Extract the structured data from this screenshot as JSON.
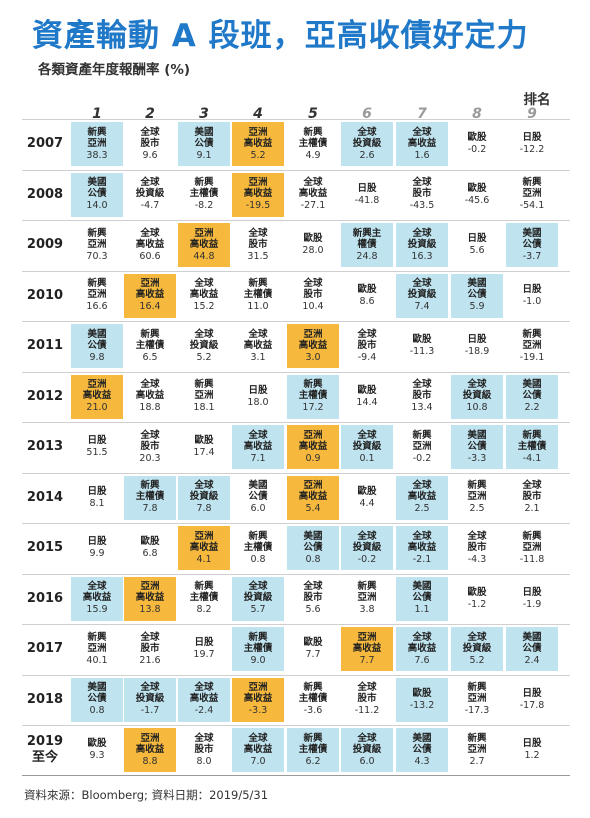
{
  "title": "資產輪動 A 段班，亞高收債好定力",
  "subtitle": "各類資產年度報酬率 (%)",
  "rank_label": "排名",
  "source": "資料來源：Bloomberg; 資料日期：2019/5/31",
  "colors": {
    "title": "#1f78c8",
    "blue": "#bfe3ef",
    "orange": "#f6b93d",
    "white": "#ffffff"
  },
  "chart_data": {
    "type": "table",
    "title": "資產輪動 A 段班，亞高收債好定力",
    "subtitle": "各類資產年度報酬率 (%)",
    "ranks": [
      "1",
      "2",
      "3",
      "4",
      "5",
      "6",
      "7",
      "8",
      "9"
    ],
    "rows": [
      {
        "year": "2007",
        "cells": [
          {
            "label": "新興\n亞洲",
            "value": "38.3",
            "color": "blue"
          },
          {
            "label": "全球\n股市",
            "value": "9.6",
            "color": "white"
          },
          {
            "label": "美國\n公債",
            "value": "9.1",
            "color": "blue"
          },
          {
            "label": "亞洲\n高收益",
            "value": "5.2",
            "color": "orange"
          },
          {
            "label": "新興\n主權債",
            "value": "4.9",
            "color": "white"
          },
          {
            "label": "全球\n投資級",
            "value": "2.6",
            "color": "blue"
          },
          {
            "label": "全球\n高收益",
            "value": "1.6",
            "color": "blue"
          },
          {
            "label": "歐股",
            "value": "-0.2",
            "color": "white"
          },
          {
            "label": "日股",
            "value": "-12.2",
            "color": "white"
          }
        ]
      },
      {
        "year": "2008",
        "cells": [
          {
            "label": "美國\n公債",
            "value": "14.0",
            "color": "blue"
          },
          {
            "label": "全球\n投資級",
            "value": "-4.7",
            "color": "white"
          },
          {
            "label": "新興\n主權債",
            "value": "-8.2",
            "color": "white"
          },
          {
            "label": "亞洲\n高收益",
            "value": "-19.5",
            "color": "orange"
          },
          {
            "label": "全球\n高收益",
            "value": "-27.1",
            "color": "white"
          },
          {
            "label": "日股",
            "value": "-41.8",
            "color": "white"
          },
          {
            "label": "全球\n股市",
            "value": "-43.5",
            "color": "white"
          },
          {
            "label": "歐股",
            "value": "-45.6",
            "color": "white"
          },
          {
            "label": "新興\n亞洲",
            "value": "-54.1",
            "color": "white"
          }
        ]
      },
      {
        "year": "2009",
        "cells": [
          {
            "label": "新興\n亞洲",
            "value": "70.3",
            "color": "white"
          },
          {
            "label": "全球\n高收益",
            "value": "60.6",
            "color": "white"
          },
          {
            "label": "亞洲\n高收益",
            "value": "44.8",
            "color": "orange"
          },
          {
            "label": "全球\n股市",
            "value": "31.5",
            "color": "white"
          },
          {
            "label": "歐股",
            "value": "28.0",
            "color": "white"
          },
          {
            "label": "新興主\n權債",
            "value": "24.8",
            "color": "blue"
          },
          {
            "label": "全球\n投資級",
            "value": "16.3",
            "color": "blue"
          },
          {
            "label": "日股",
            "value": "5.6",
            "color": "white"
          },
          {
            "label": "美國\n公債",
            "value": "-3.7",
            "color": "blue"
          }
        ]
      },
      {
        "year": "2010",
        "cells": [
          {
            "label": "新興\n亞洲",
            "value": "16.6",
            "color": "white"
          },
          {
            "label": "亞洲\n高收益",
            "value": "16.4",
            "color": "orange"
          },
          {
            "label": "全球\n高收益",
            "value": "15.2",
            "color": "white"
          },
          {
            "label": "新興\n主權債",
            "value": "11.0",
            "color": "white"
          },
          {
            "label": "全球\n股市",
            "value": "10.4",
            "color": "white"
          },
          {
            "label": "歐股",
            "value": "8.6",
            "color": "white"
          },
          {
            "label": "全球\n投資級",
            "value": "7.4",
            "color": "blue"
          },
          {
            "label": "美國\n公債",
            "value": "5.9",
            "color": "blue"
          },
          {
            "label": "日股",
            "value": "-1.0",
            "color": "white"
          }
        ]
      },
      {
        "year": "2011",
        "cells": [
          {
            "label": "美國\n公債",
            "value": "9.8",
            "color": "blue"
          },
          {
            "label": "新興\n主權債",
            "value": "6.5",
            "color": "white"
          },
          {
            "label": "全球\n投資級",
            "value": "5.2",
            "color": "white"
          },
          {
            "label": "全球\n高收益",
            "value": "3.1",
            "color": "white"
          },
          {
            "label": "亞洲\n高收益",
            "value": "3.0",
            "color": "orange"
          },
          {
            "label": "全球\n股市",
            "value": "-9.4",
            "color": "white"
          },
          {
            "label": "歐股",
            "value": "-11.3",
            "color": "white"
          },
          {
            "label": "日股",
            "value": "-18.9",
            "color": "white"
          },
          {
            "label": "新興\n亞洲",
            "value": "-19.1",
            "color": "white"
          }
        ]
      },
      {
        "year": "2012",
        "cells": [
          {
            "label": "亞洲\n高收益",
            "value": "21.0",
            "color": "orange"
          },
          {
            "label": "全球\n高收益",
            "value": "18.8",
            "color": "white"
          },
          {
            "label": "新興\n亞洲",
            "value": "18.1",
            "color": "white"
          },
          {
            "label": "日股",
            "value": "18.0",
            "color": "white"
          },
          {
            "label": "新興\n主權債",
            "value": "17.2",
            "color": "blue"
          },
          {
            "label": "歐股",
            "value": "14.4",
            "color": "white"
          },
          {
            "label": "全球\n股市",
            "value": "13.4",
            "color": "white"
          },
          {
            "label": "全球\n投資級",
            "value": "10.8",
            "color": "blue"
          },
          {
            "label": "美國\n公債",
            "value": "2.2",
            "color": "blue"
          }
        ]
      },
      {
        "year": "2013",
        "cells": [
          {
            "label": "日股",
            "value": "51.5",
            "color": "white"
          },
          {
            "label": "全球\n股市",
            "value": "20.3",
            "color": "white"
          },
          {
            "label": "歐股",
            "value": "17.4",
            "color": "white"
          },
          {
            "label": "全球\n高收益",
            "value": "7.1",
            "color": "blue"
          },
          {
            "label": "亞洲\n高收益",
            "value": "0.9",
            "color": "orange"
          },
          {
            "label": "全球\n投資級",
            "value": "0.1",
            "color": "blue"
          },
          {
            "label": "新興\n亞洲",
            "value": "-0.2",
            "color": "white"
          },
          {
            "label": "美國\n公債",
            "value": "-3.3",
            "color": "blue"
          },
          {
            "label": "新興\n主權債",
            "value": "-4.1",
            "color": "blue"
          }
        ]
      },
      {
        "year": "2014",
        "cells": [
          {
            "label": "日股",
            "value": "8.1",
            "color": "white"
          },
          {
            "label": "新興\n主權債",
            "value": "7.8",
            "color": "blue"
          },
          {
            "label": "全球\n投資級",
            "value": "7.8",
            "color": "blue"
          },
          {
            "label": "美國\n公債",
            "value": "6.0",
            "color": "white"
          },
          {
            "label": "亞洲\n高收益",
            "value": "5.4",
            "color": "orange"
          },
          {
            "label": "歐股",
            "value": "4.4",
            "color": "white"
          },
          {
            "label": "全球\n高收益",
            "value": "2.5",
            "color": "blue"
          },
          {
            "label": "新興\n亞洲",
            "value": "2.5",
            "color": "white"
          },
          {
            "label": "全球\n股市",
            "value": "2.1",
            "color": "white"
          }
        ]
      },
      {
        "year": "2015",
        "cells": [
          {
            "label": "日股",
            "value": "9.9",
            "color": "white"
          },
          {
            "label": "歐股",
            "value": "6.8",
            "color": "white"
          },
          {
            "label": "亞洲\n高收益",
            "value": "4.1",
            "color": "orange"
          },
          {
            "label": "新興\n主權債",
            "value": "0.8",
            "color": "white"
          },
          {
            "label": "美國\n公債",
            "value": "0.8",
            "color": "blue"
          },
          {
            "label": "全球\n投資級",
            "value": "-0.2",
            "color": "blue"
          },
          {
            "label": "全球\n高收益",
            "value": "-2.1",
            "color": "blue"
          },
          {
            "label": "全球\n股市",
            "value": "-4.3",
            "color": "white"
          },
          {
            "label": "新興\n亞洲",
            "value": "-11.8",
            "color": "white"
          }
        ]
      },
      {
        "year": "2016",
        "cells": [
          {
            "label": "全球\n高收益",
            "value": "15.9",
            "color": "blue"
          },
          {
            "label": "亞洲\n高收益",
            "value": "13.8",
            "color": "orange"
          },
          {
            "label": "新興\n主權債",
            "value": "8.2",
            "color": "white"
          },
          {
            "label": "全球\n投資級",
            "value": "5.7",
            "color": "blue"
          },
          {
            "label": "全球\n股市",
            "value": "5.6",
            "color": "white"
          },
          {
            "label": "新興\n亞洲",
            "value": "3.8",
            "color": "white"
          },
          {
            "label": "美國\n公債",
            "value": "1.1",
            "color": "blue"
          },
          {
            "label": "歐股",
            "value": "-1.2",
            "color": "white"
          },
          {
            "label": "日股",
            "value": "-1.9",
            "color": "white"
          }
        ]
      },
      {
        "year": "2017",
        "cells": [
          {
            "label": "新興\n亞洲",
            "value": "40.1",
            "color": "white"
          },
          {
            "label": "全球\n股市",
            "value": "21.6",
            "color": "white"
          },
          {
            "label": "日股",
            "value": "19.7",
            "color": "white"
          },
          {
            "label": "新興\n主權債",
            "value": "9.0",
            "color": "blue"
          },
          {
            "label": "歐股",
            "value": "7.7",
            "color": "white"
          },
          {
            "label": "亞洲\n高收益",
            "value": "7.7",
            "color": "orange"
          },
          {
            "label": "全球\n高收益",
            "value": "7.6",
            "color": "blue"
          },
          {
            "label": "全球\n投資級",
            "value": "5.2",
            "color": "blue"
          },
          {
            "label": "美國\n公債",
            "value": "2.4",
            "color": "blue"
          }
        ]
      },
      {
        "year": "2018",
        "cells": [
          {
            "label": "美國\n公債",
            "value": "0.8",
            "color": "blue"
          },
          {
            "label": "全球\n投資級",
            "value": "-1.7",
            "color": "blue"
          },
          {
            "label": "全球\n高收益",
            "value": "-2.4",
            "color": "blue"
          },
          {
            "label": "亞洲\n高收益",
            "value": "-3.3",
            "color": "orange"
          },
          {
            "label": "新興\n主權債",
            "value": "-3.6",
            "color": "white"
          },
          {
            "label": "全球\n股市",
            "value": "-11.2",
            "color": "white"
          },
          {
            "label": "歐股",
            "value": "-13.2",
            "color": "blue"
          },
          {
            "label": "新興\n亞洲",
            "value": "-17.3",
            "color": "white"
          },
          {
            "label": "日股",
            "value": "-17.8",
            "color": "white"
          }
        ]
      },
      {
        "year": "2019\n至今",
        "cells": [
          {
            "label": "歐股",
            "value": "9.3",
            "color": "white"
          },
          {
            "label": "亞洲\n高收益",
            "value": "8.8",
            "color": "orange"
          },
          {
            "label": "全球\n股市",
            "value": "8.0",
            "color": "white"
          },
          {
            "label": "全球\n高收益",
            "value": "7.0",
            "color": "blue"
          },
          {
            "label": "新興\n主權債",
            "value": "6.2",
            "color": "blue"
          },
          {
            "label": "全球\n投資級",
            "value": "6.0",
            "color": "blue"
          },
          {
            "label": "美國\n公債",
            "value": "4.3",
            "color": "blue"
          },
          {
            "label": "新興\n亞洲",
            "value": "2.7",
            "color": "white"
          },
          {
            "label": "日股",
            "value": "1.2",
            "color": "white"
          }
        ]
      }
    ]
  }
}
